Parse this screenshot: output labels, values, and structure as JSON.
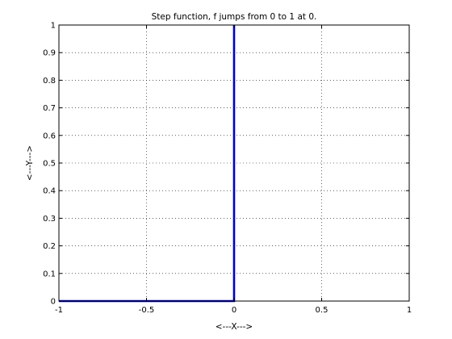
{
  "chart_data": {
    "type": "line",
    "title": "Step function, f jumps from 0 to 1 at 0.",
    "xlabel": "<---X--->",
    "ylabel": "<---Y--->",
    "xlim": [
      -1,
      1
    ],
    "ylim": [
      0,
      1
    ],
    "xticks": [
      -1,
      -0.5,
      0,
      0.5,
      1
    ],
    "xtick_labels": [
      "-1",
      "-0.5",
      "0",
      "0.5",
      "1"
    ],
    "yticks": [
      0,
      0.1,
      0.2,
      0.3,
      0.4,
      0.5,
      0.6,
      0.7,
      0.8,
      0.9,
      1
    ],
    "ytick_labels": [
      "0",
      "0.1",
      "0.2",
      "0.3",
      "0.4",
      "0.5",
      "0.6",
      "0.7",
      "0.8",
      "0.9",
      "1"
    ],
    "grid": true,
    "series": [
      {
        "x": [
          -1,
          0,
          0,
          0,
          0
        ],
        "y": [
          0,
          0,
          0.5,
          1,
          1
        ],
        "color": "#0000cc"
      }
    ]
  }
}
